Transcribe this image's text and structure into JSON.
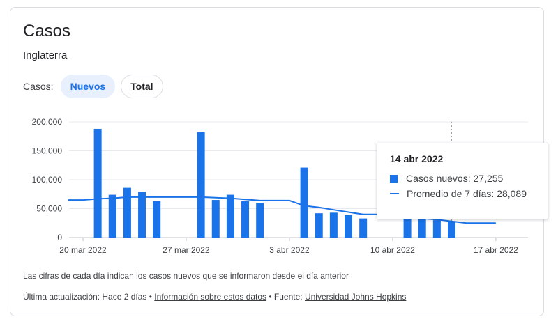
{
  "card": {
    "title": "Casos",
    "subtitle": "Inglaterra",
    "filter_label": "Casos:",
    "chips": [
      "Nuevos",
      "Total"
    ],
    "selected_chip": "Nuevos"
  },
  "tooltip": {
    "date": "14 abr 2022",
    "bar_text": "Casos nuevos: 27,255",
    "line_text": "Promedio de 7 días: 28,089"
  },
  "note": "Las cifras de cada día indican los casos nuevos que se informaron desde el día anterior",
  "footer": {
    "updated": "Última actualización: Hace 2 días",
    "sep1": " • ",
    "info_link": "Información sobre estos datos",
    "sep2": " • Fuente: ",
    "source_link": "Universidad Johns Hopkins"
  },
  "colors": {
    "accent": "#1a73e8",
    "grid": "#e8eaed",
    "axis": "#5f6368"
  },
  "chart_data": {
    "type": "bar",
    "x_tick_labels": [
      "20 mar 2022",
      "27 mar 2022",
      "3 abr 2022",
      "10 abr 2022",
      "17 abr 2022"
    ],
    "y_tick_labels": [
      "200,000",
      "150,000",
      "100,000",
      "50,000",
      "0"
    ],
    "ylim": [
      0,
      200000
    ],
    "grid": true,
    "series": [
      {
        "name": "Casos nuevos",
        "type": "bar",
        "dates": [
          "2022-03-21",
          "2022-03-22",
          "2022-03-23",
          "2022-03-24",
          "2022-03-25",
          "2022-03-28",
          "2022-03-29",
          "2022-03-30",
          "2022-03-31",
          "2022-04-01",
          "2022-04-04",
          "2022-04-05",
          "2022-04-06",
          "2022-04-07",
          "2022-04-08",
          "2022-04-11",
          "2022-04-12",
          "2022-04-13",
          "2022-04-14"
        ],
        "values": [
          188000,
          74000,
          86000,
          79000,
          63000,
          182000,
          65000,
          74000,
          63000,
          60000,
          121000,
          42000,
          43000,
          39000,
          33000,
          45000,
          32000,
          30000,
          27255
        ]
      },
      {
        "name": "Promedio de 7 días",
        "type": "line",
        "dates": [
          "2022-03-19",
          "2022-03-20",
          "2022-03-21",
          "2022-03-22",
          "2022-03-23",
          "2022-03-24",
          "2022-03-25",
          "2022-03-26",
          "2022-03-27",
          "2022-03-28",
          "2022-03-29",
          "2022-03-30",
          "2022-03-31",
          "2022-04-01",
          "2022-04-02",
          "2022-04-03",
          "2022-04-04",
          "2022-04-05",
          "2022-04-06",
          "2022-04-07",
          "2022-04-08",
          "2022-04-09",
          "2022-04-10",
          "2022-04-11",
          "2022-04-12",
          "2022-04-13",
          "2022-04-14",
          "2022-04-15",
          "2022-04-16",
          "2022-04-17"
        ],
        "values": [
          65000,
          65000,
          67000,
          68000,
          70000,
          70000,
          70000,
          70000,
          70000,
          70000,
          69000,
          68000,
          66000,
          64000,
          64000,
          64000,
          55000,
          52000,
          48000,
          44000,
          40000,
          40000,
          40000,
          36000,
          33000,
          31000,
          28089,
          25000,
          25000,
          25000
        ]
      }
    ]
  }
}
